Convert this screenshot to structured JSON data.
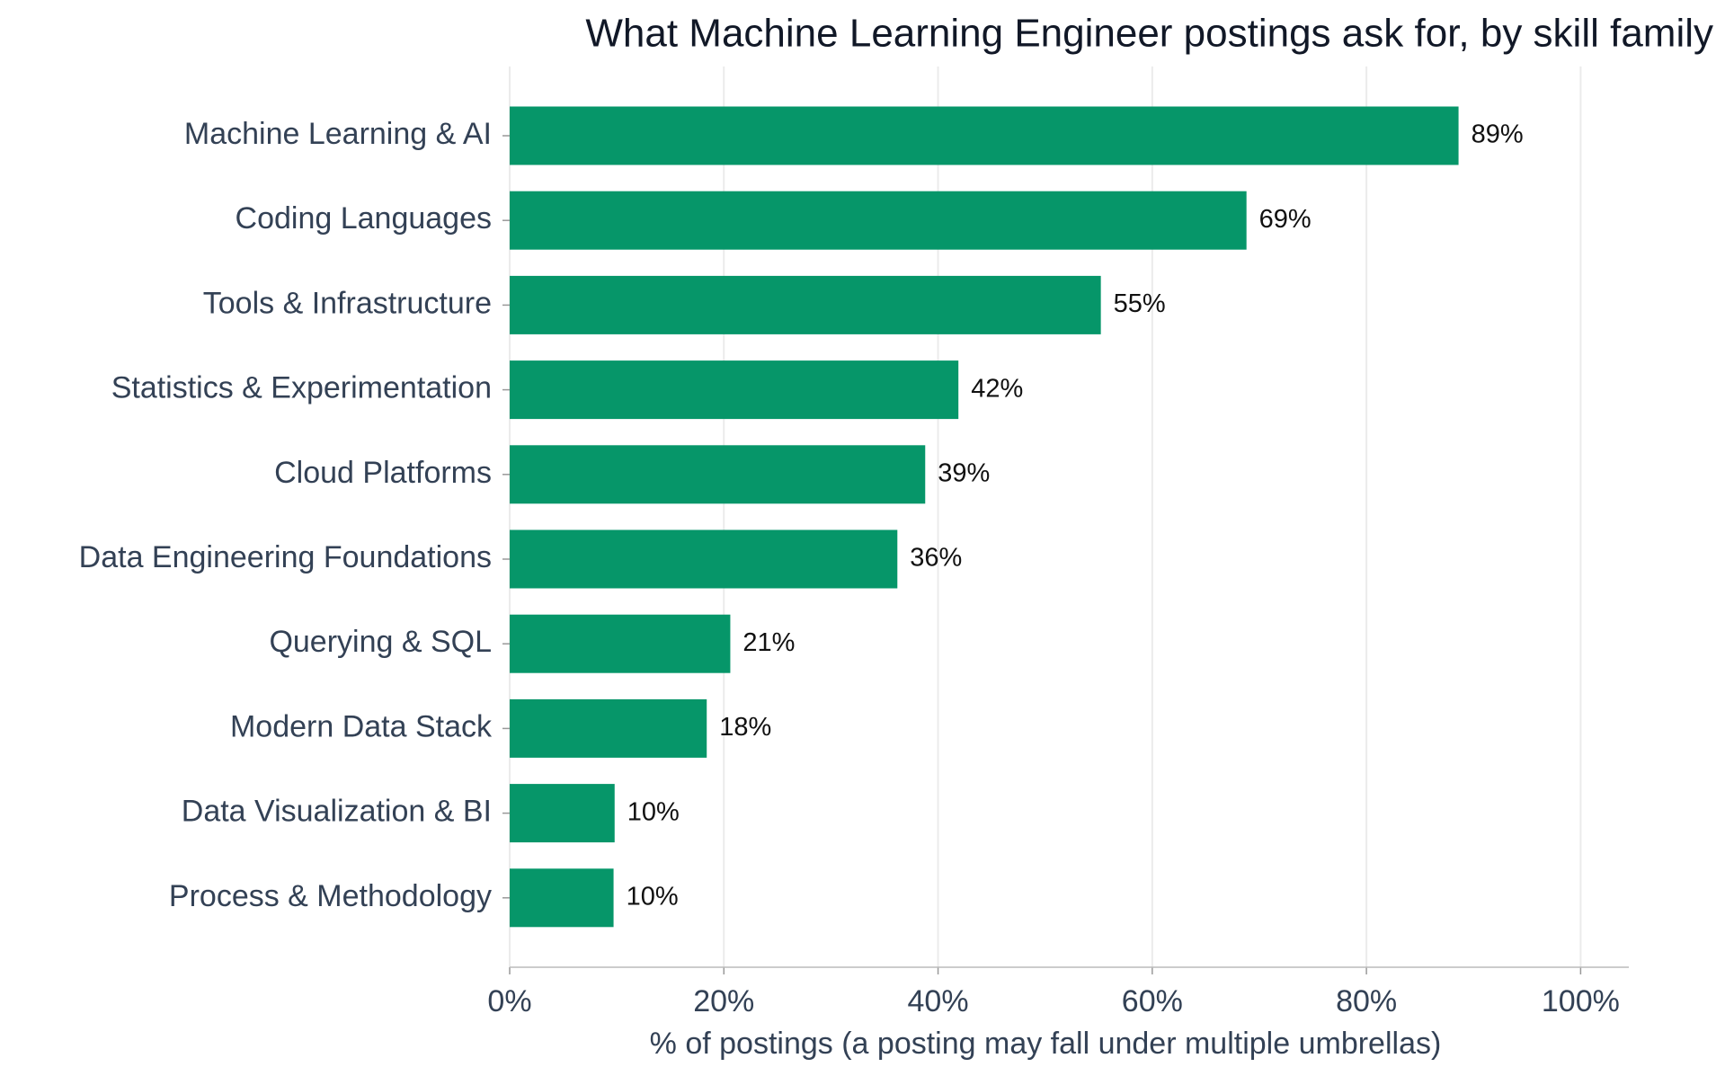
{
  "chart_data": {
    "type": "barh",
    "title": "What Machine Learning Engineer postings ask for, by skill family",
    "xlabel": "% of postings (a posting may fall under multiple umbrellas)",
    "categories": [
      "Machine Learning & AI",
      "Coding Languages",
      "Tools & Infrastructure",
      "Statistics & Experimentation",
      "Cloud Platforms",
      "Data Engineering Foundations",
      "Querying & SQL",
      "Modern Data Stack",
      "Data Visualization & BI",
      "Process & Methodology"
    ],
    "values": [
      88.6,
      68.8,
      55.2,
      41.9,
      38.8,
      36.2,
      20.6,
      18.4,
      9.8,
      9.7
    ],
    "value_labels": [
      "89%",
      "69%",
      "55%",
      "42%",
      "39%",
      "36%",
      "21%",
      "18%",
      "10%",
      "10%"
    ],
    "color": "#069669",
    "xlim": [
      0,
      104.5
    ],
    "xticks": [
      {
        "value": 0,
        "label": "0%"
      },
      {
        "value": 20,
        "label": "20%"
      },
      {
        "value": 40,
        "label": "40%"
      },
      {
        "value": 60,
        "label": "60%"
      },
      {
        "value": 80,
        "label": "80%"
      },
      {
        "value": 100,
        "label": "100%"
      }
    ],
    "grid": true
  }
}
